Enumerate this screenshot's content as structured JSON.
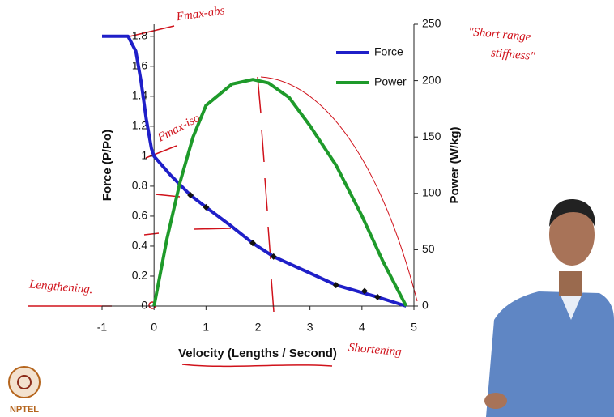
{
  "chart_data": {
    "type": "line",
    "xlabel": "Velocity (Lengths / Second)",
    "ylabel": "Force (P/Po)",
    "y2label": "Power (W/kg)",
    "xlim": [
      -1,
      5
    ],
    "xticks": [
      -1,
      0,
      1,
      2,
      3,
      4,
      5
    ],
    "ylim": [
      0,
      1.88
    ],
    "yticks": [
      0,
      0.2,
      0.4,
      0.6,
      0.8,
      1,
      1.2,
      1.4,
      1.6,
      1.8
    ],
    "y2lim": [
      0,
      250
    ],
    "y2ticks": [
      0,
      50,
      100,
      150,
      200,
      250
    ],
    "legend": "upper-right",
    "series": [
      {
        "name": "Force",
        "color": "#1f1fc8",
        "x": [
          -1,
          -0.5,
          -0.35,
          -0.25,
          -0.15,
          -0.05,
          0,
          0.3,
          0.7,
          1,
          1.5,
          1.9,
          2.3,
          3,
          3.5,
          4,
          4.3,
          4.85
        ],
        "values": [
          1.8,
          1.8,
          1.7,
          1.5,
          1.25,
          1.05,
          1,
          0.88,
          0.74,
          0.66,
          0.53,
          0.42,
          0.33,
          0.22,
          0.14,
          0.09,
          0.06,
          0
        ]
      },
      {
        "name": "Power",
        "color": "#1e9a2a",
        "axis": "y2",
        "x": [
          0,
          0.25,
          0.5,
          0.75,
          1,
          1.5,
          1.9,
          2.2,
          2.6,
          3,
          3.5,
          4,
          4.4,
          4.85
        ],
        "values": [
          0,
          60,
          110,
          150,
          178,
          197,
          201,
          198,
          185,
          160,
          125,
          80,
          40,
          0
        ]
      }
    ],
    "points": {
      "color": "#111111",
      "x": [
        0.7,
        1,
        1.9,
        2.3,
        3.5,
        4.05,
        4.3
      ],
      "values": [
        0.74,
        0.66,
        0.42,
        0.33,
        0.14,
        0.1,
        0.06
      ]
    },
    "annotations": [
      "Fmax-abs",
      "Fmax-iso",
      "\"Short range",
      "stiffness\"",
      "Lengthening.",
      "Shortening"
    ],
    "logo": "NPTEL"
  }
}
